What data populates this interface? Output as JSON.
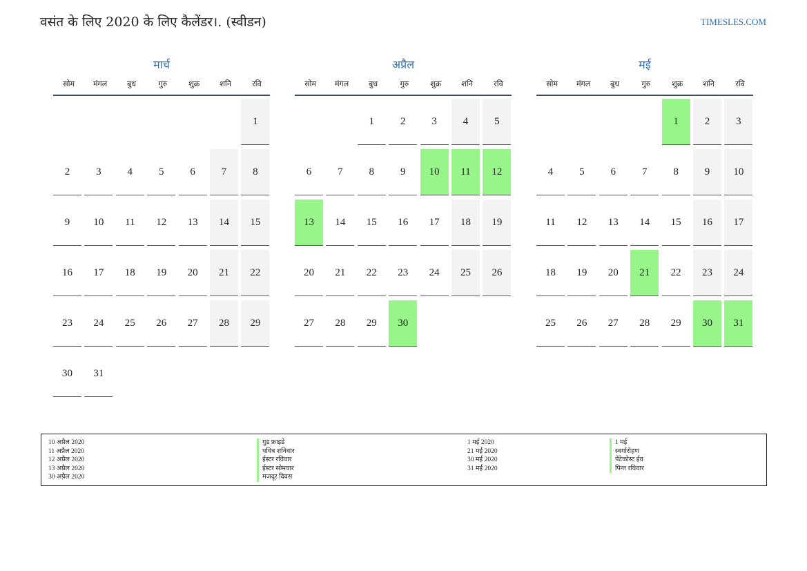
{
  "header": {
    "title": "वसंत के लिए 2020 के लिए कैलेंडर।. (स्वीडन)",
    "site": "TIMESLES.COM"
  },
  "weekdays": [
    "सोम",
    "मंगल",
    "बुध",
    "गुरु",
    "शुक्र",
    "शनि",
    "रवि"
  ],
  "colors": {
    "accent": "#2b6fb5",
    "holiday": "#98f58a",
    "weekend": "#f3f3f3"
  },
  "months": [
    {
      "name": "मार्च",
      "start_offset": 6,
      "days": 31,
      "holidays": []
    },
    {
      "name": "अप्रैल",
      "start_offset": 2,
      "days": 30,
      "holidays": [
        10,
        11,
        12,
        13,
        30
      ]
    },
    {
      "name": "मई",
      "start_offset": 4,
      "days": 31,
      "holidays": [
        1,
        21,
        30,
        31
      ]
    }
  ],
  "legend": {
    "dates_1": [
      "10 अप्रैल 2020",
      "11 अप्रैल 2020",
      "12 अप्रैल 2020",
      "13 अप्रैल 2020",
      "30 अप्रैल 2020"
    ],
    "names_1": [
      "गुड फ्राइडे",
      "पवित्र शनिवार",
      "ईस्टर रविवार",
      "ईस्टर सोमवार",
      "मजदूर दिवस"
    ],
    "dates_2": [
      "1 मई 2020",
      "21 मई 2020",
      "30 मई 2020",
      "31 मई 2020"
    ],
    "names_2": [
      "1 मई",
      "स्वर्गारोहण",
      "पेंटेकोस्ट ईव",
      "पिन्त रविवार"
    ]
  }
}
